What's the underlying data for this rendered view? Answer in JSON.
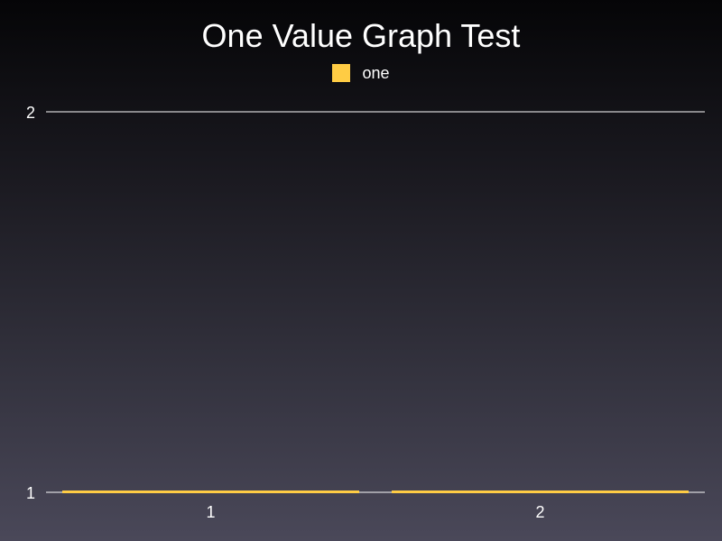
{
  "chart_data": {
    "type": "bar",
    "title": "One Value Graph Test",
    "categories": [
      "1",
      "2"
    ],
    "series": [
      {
        "name": "one",
        "values": [
          1,
          1
        ],
        "color": "#ffcc44"
      }
    ],
    "xlabel": "",
    "ylabel": "",
    "ylim": [
      1,
      2
    ],
    "yticks": [
      1,
      2
    ],
    "grid": true,
    "legend": "top-center"
  }
}
